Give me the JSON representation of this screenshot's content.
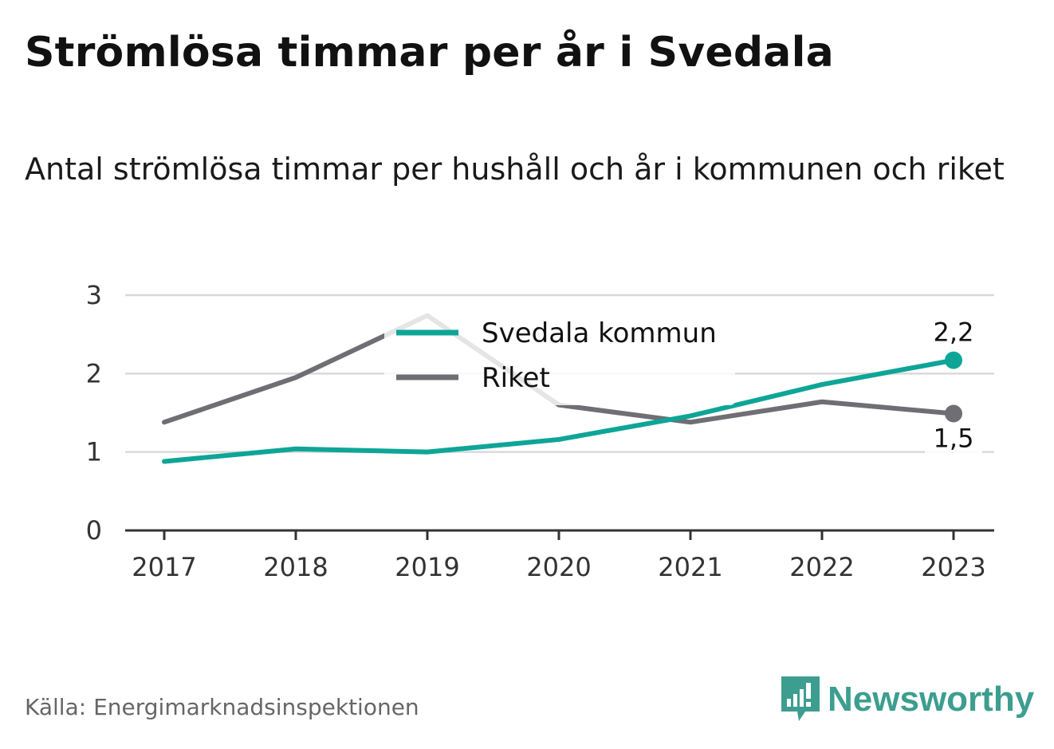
{
  "title": "Strömlösa timmar per år i Svedala",
  "subtitle": "Antal strömlösa timmar per hushåll och år i kommunen och riket",
  "source": "Källa: Energimarknadsinspektionen",
  "brand": "Newsworthy",
  "colors": {
    "svedala": "#0ea597",
    "riket": "#6e6e74",
    "grid": "#d9d9d9",
    "axis": "#333333",
    "brand": "#3d9e8f"
  },
  "chart_data": {
    "type": "line",
    "x": [
      "2017",
      "2018",
      "2019",
      "2020",
      "2021",
      "2022",
      "2023"
    ],
    "ylim": [
      0,
      3
    ],
    "yticks": [
      "0",
      "1",
      "2",
      "3"
    ],
    "grid": true,
    "legend_position": "top-center",
    "series": [
      {
        "name": "Svedala kommun",
        "values": [
          0.88,
          1.04,
          1.0,
          1.16,
          1.46,
          1.86,
          2.17
        ],
        "end_label": "2,2"
      },
      {
        "name": "Riket",
        "values": [
          1.38,
          1.95,
          2.74,
          1.6,
          1.38,
          1.64,
          1.49
        ],
        "end_label": "1,5"
      }
    ]
  }
}
